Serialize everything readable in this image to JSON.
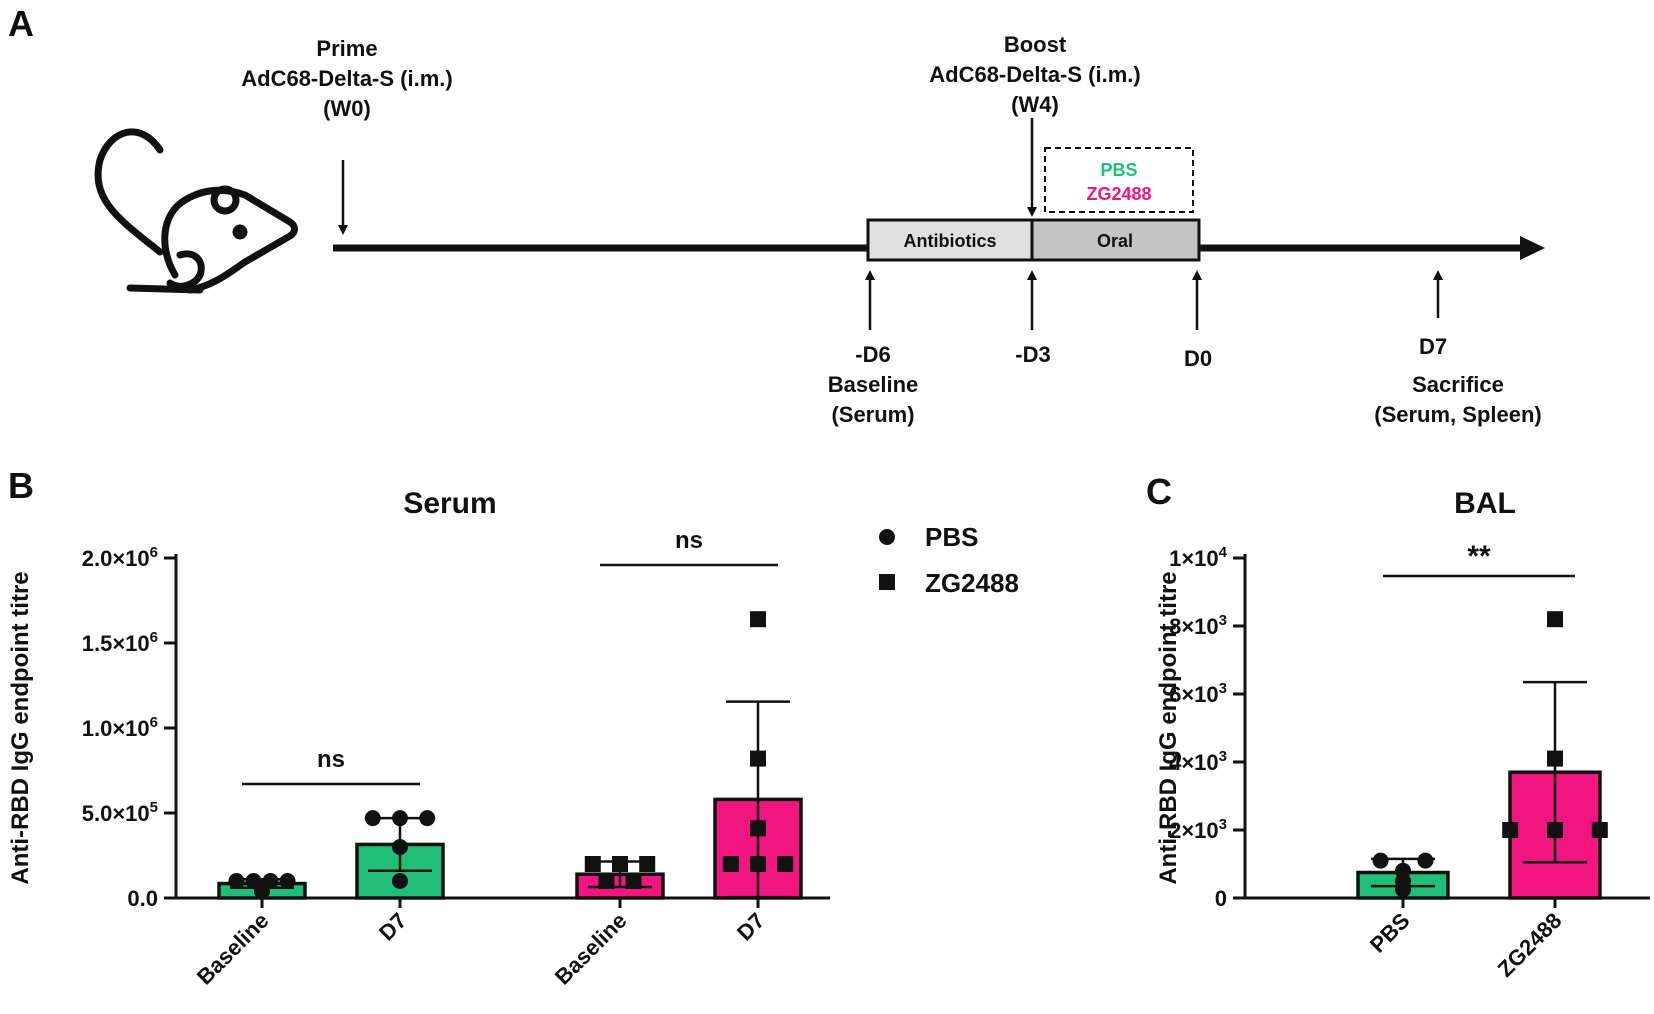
{
  "colors": {
    "pbs": "#1fbf7a",
    "zg2488": "#f0157f",
    "axis": "#111111",
    "antibiotics_box": "#e0e0e0",
    "oral_box": "#c4c4c4"
  },
  "panels": {
    "a": "A",
    "b": "B",
    "c": "C"
  },
  "timeline": {
    "prime": [
      "Prime",
      "AdC68-Delta-S (i.m.)",
      "(W0)"
    ],
    "boost": [
      "Boost",
      "AdC68-Delta-S (i.m.)",
      "(W4)"
    ],
    "treatment_pbs": "PBS",
    "treatment_zg2488": "ZG2488",
    "antibiotics": "Antibiotics",
    "oral": "Oral",
    "d6": [
      "-D6",
      "Baseline",
      "(Serum)"
    ],
    "d3": "-D3",
    "d0": "D0",
    "d7": [
      "D7",
      "Sacrifice",
      "(Serum, Spleen)"
    ],
    "mouse_icon": "mouse-icon"
  },
  "legend": {
    "pbs": "PBS",
    "zg2488": "ZG2488",
    "pbs_marker": "circle",
    "zg2488_marker": "square"
  },
  "chart_data": [
    {
      "type": "bar",
      "title": "Serum",
      "ylabel": "Anti-RBD IgG endpoint titre",
      "ylim": [
        0,
        2000000
      ],
      "yticks": [
        0,
        500000,
        1000000,
        1500000,
        2000000
      ],
      "ytick_labels": [
        "0.0",
        "5.0×10^5",
        "1.0×10^6",
        "1.5×10^6",
        "2.0×10^6"
      ],
      "categories": [
        "Baseline",
        "D7",
        "Baseline",
        "D7"
      ],
      "groups": [
        "PBS",
        "PBS",
        "ZG2488",
        "ZG2488"
      ],
      "values": [
        85000,
        315000,
        140000,
        580000
      ],
      "error": [
        25000,
        155000,
        75000,
        575000
      ],
      "points": [
        [
          100000,
          100000,
          100000,
          100000,
          40000
        ],
        [
          470000,
          470000,
          470000,
          300000,
          100000
        ],
        [
          200000,
          200000,
          200000,
          100000,
          100000
        ],
        [
          1640000,
          820000,
          410000,
          200000,
          200000,
          200000
        ]
      ],
      "comparisons": [
        {
          "between": [
            0,
            1
          ],
          "label": "ns"
        },
        {
          "between": [
            2,
            3
          ],
          "label": "ns"
        }
      ]
    },
    {
      "type": "bar",
      "title": "BAL",
      "ylabel": "Anti-RBD IgG endpoint titre",
      "ylim": [
        0,
        10000
      ],
      "yticks": [
        0,
        2000,
        4000,
        6000,
        8000,
        10000
      ],
      "ytick_labels": [
        "0",
        "2×10^3",
        "4×10^3",
        "6×10^3",
        "8×10^3",
        "1×10^4"
      ],
      "categories": [
        "PBS",
        "ZG2488"
      ],
      "groups": [
        "PBS",
        "ZG2488"
      ],
      "values": [
        750,
        3700
      ],
      "error": [
        400,
        2650
      ],
      "points": [
        [
          1100,
          1100,
          800,
          500,
          250
        ],
        [
          8200,
          4100,
          2000,
          2000,
          2000
        ]
      ],
      "comparisons": [
        {
          "between": [
            0,
            1
          ],
          "label": "**"
        }
      ]
    }
  ]
}
